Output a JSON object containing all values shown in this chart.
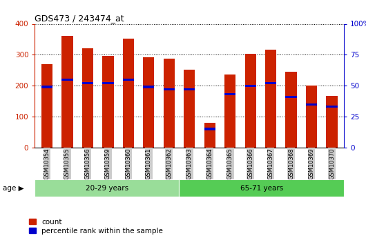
{
  "title": "GDS473 / 243474_at",
  "samples": [
    "GSM10354",
    "GSM10355",
    "GSM10356",
    "GSM10359",
    "GSM10360",
    "GSM10361",
    "GSM10362",
    "GSM10363",
    "GSM10364",
    "GSM10365",
    "GSM10366",
    "GSM10367",
    "GSM10368",
    "GSM10369",
    "GSM10370"
  ],
  "counts": [
    270,
    362,
    320,
    296,
    352,
    292,
    287,
    251,
    80,
    237,
    303,
    317,
    246,
    200,
    167
  ],
  "percentile_ranks": [
    49,
    55,
    52,
    52,
    55,
    49,
    47,
    47,
    15,
    43,
    50,
    52,
    41,
    35,
    33
  ],
  "group1_label": "20-29 years",
  "group2_label": "65-71 years",
  "group1_count": 7,
  "group2_count": 8,
  "bar_color": "#cc2200",
  "percentile_color": "#0000cc",
  "group1_bg": "#99dd99",
  "group2_bg": "#55cc55",
  "tick_bg": "#cccccc",
  "ylim_left": [
    0,
    400
  ],
  "ylim_right": [
    0,
    100
  ],
  "legend_count": "count",
  "legend_pct": "percentile rank within the sample",
  "age_label": "age",
  "left_axis_color": "#cc2200",
  "right_axis_color": "#0000cc"
}
